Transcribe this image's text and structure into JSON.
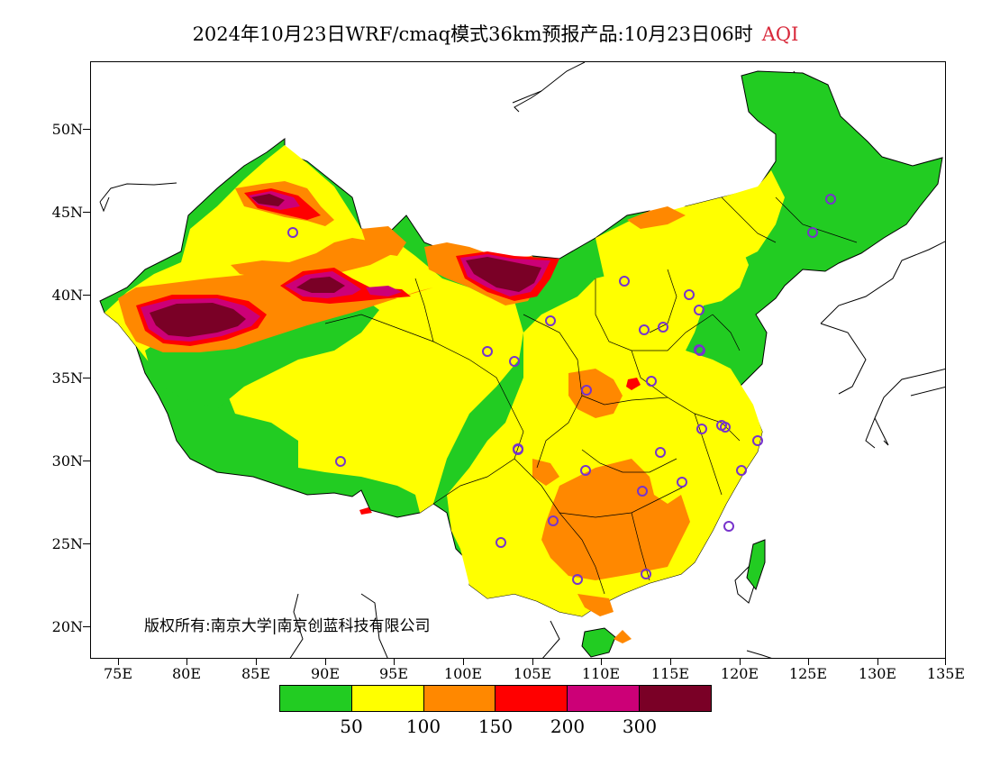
{
  "title": {
    "main": "2024年10月23日WRF/cmaq模式36km预报产品:10月23日06时",
    "variable": "AQI",
    "variable_color": "#d8283a"
  },
  "axes": {
    "y_ticks": [
      "50N",
      "45N",
      "40N",
      "35N",
      "30N",
      "25N",
      "20N"
    ],
    "x_ticks": [
      "75E",
      "80E",
      "85E",
      "90E",
      "95E",
      "100E",
      "105E",
      "110E",
      "115E",
      "120E",
      "125E",
      "130E",
      "135E"
    ],
    "lon_range": [
      73,
      135
    ],
    "lat_range": [
      18,
      54
    ]
  },
  "copyright": "版权所有:南京大学|南京创蓝科技有限公司",
  "legend": {
    "labels": [
      "50",
      "100",
      "150",
      "200",
      "300"
    ],
    "colors": [
      "#22cc22",
      "#ffff00",
      "#ff8800",
      "#ff0000",
      "#cc0077",
      "#7a0026"
    ]
  },
  "map": {
    "background": "#ffffff",
    "boundary_color": "#000000",
    "marker_color": "#7733cc",
    "station_markers": 32
  }
}
